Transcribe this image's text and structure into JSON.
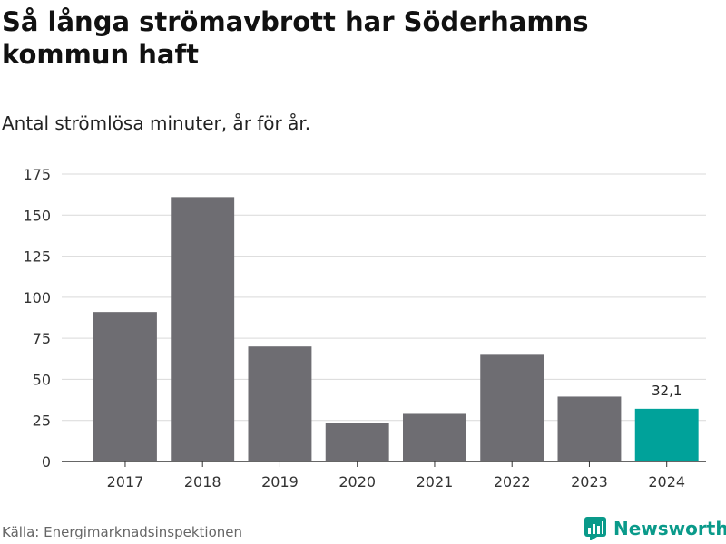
{
  "header": {
    "title": "Så långa strömavbrott har Söderhamns kommun haft",
    "subtitle": "Antal strömlösa minuter, år för år."
  },
  "footer": {
    "source": "Källa: Energimarknadsinspektionen",
    "brand": "Newsworthy",
    "brand_icon": "bar-chart-icon"
  },
  "colors": {
    "bar": "#6e6d72",
    "highlight": "#00a29a",
    "grid": "#d9d9d9",
    "axis": "#333333",
    "brand": "#0a9a8a"
  },
  "chart_data": {
    "type": "bar",
    "title": "Så långa strömavbrott har Söderhamns kommun haft",
    "subtitle": "Antal strömlösa minuter, år för år.",
    "xlabel": "",
    "ylabel": "",
    "categories": [
      "2017",
      "2018",
      "2019",
      "2020",
      "2021",
      "2022",
      "2023",
      "2024"
    ],
    "values": [
      91,
      161,
      70,
      23.5,
      29,
      65.5,
      39.5,
      32.1
    ],
    "highlight_index": 7,
    "data_labels": [
      {
        "index": 7,
        "text": "32,1"
      }
    ],
    "ylim": [
      0,
      175
    ],
    "yticks": [
      0,
      25,
      50,
      75,
      100,
      125,
      150,
      175
    ],
    "grid": true,
    "legend": "none"
  }
}
